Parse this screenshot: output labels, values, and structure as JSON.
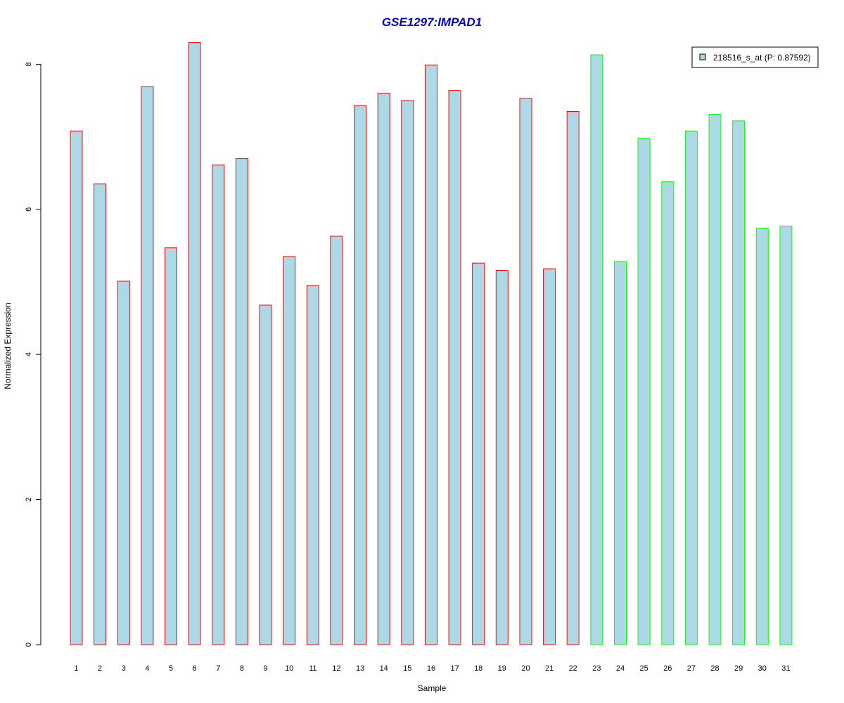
{
  "chart_data": {
    "type": "bar",
    "title": "GSE1297:IMPAD1",
    "xlabel": "Sample",
    "ylabel": "Normalized Expression",
    "categories": [
      "1",
      "2",
      "3",
      "4",
      "5",
      "6",
      "7",
      "8",
      "9",
      "10",
      "11",
      "12",
      "13",
      "14",
      "15",
      "16",
      "17",
      "18",
      "19",
      "20",
      "21",
      "22",
      "23",
      "24",
      "25",
      "26",
      "27",
      "28",
      "29",
      "30",
      "31"
    ],
    "series": [
      {
        "name": "218516_s_at (P: 0.87592)",
        "values": [
          7.08,
          6.35,
          5.01,
          7.69,
          5.47,
          8.3,
          6.61,
          6.7,
          4.68,
          5.35,
          4.95,
          5.63,
          7.43,
          7.6,
          7.5,
          7.99,
          7.64,
          5.26,
          5.16,
          7.53,
          5.18,
          7.35,
          8.13,
          5.28,
          6.98,
          6.38,
          7.08,
          7.31,
          7.22,
          5.74,
          5.77
        ]
      }
    ],
    "groups": [
      0,
      0,
      0,
      0,
      0,
      0,
      0,
      0,
      0,
      0,
      0,
      0,
      0,
      0,
      0,
      0,
      0,
      0,
      0,
      0,
      0,
      0,
      1,
      1,
      1,
      1,
      1,
      1,
      1,
      1,
      1
    ],
    "yticks": [
      0,
      2,
      4,
      6,
      8
    ],
    "ylim": [
      0,
      8.3
    ],
    "grid": false,
    "legend_position": "top-right",
    "colors": {
      "bar_fill": "#add8e6",
      "group_borders": [
        "#ff0000",
        "#00ff00"
      ],
      "title": "#0000cc",
      "axis": "#000000"
    }
  }
}
